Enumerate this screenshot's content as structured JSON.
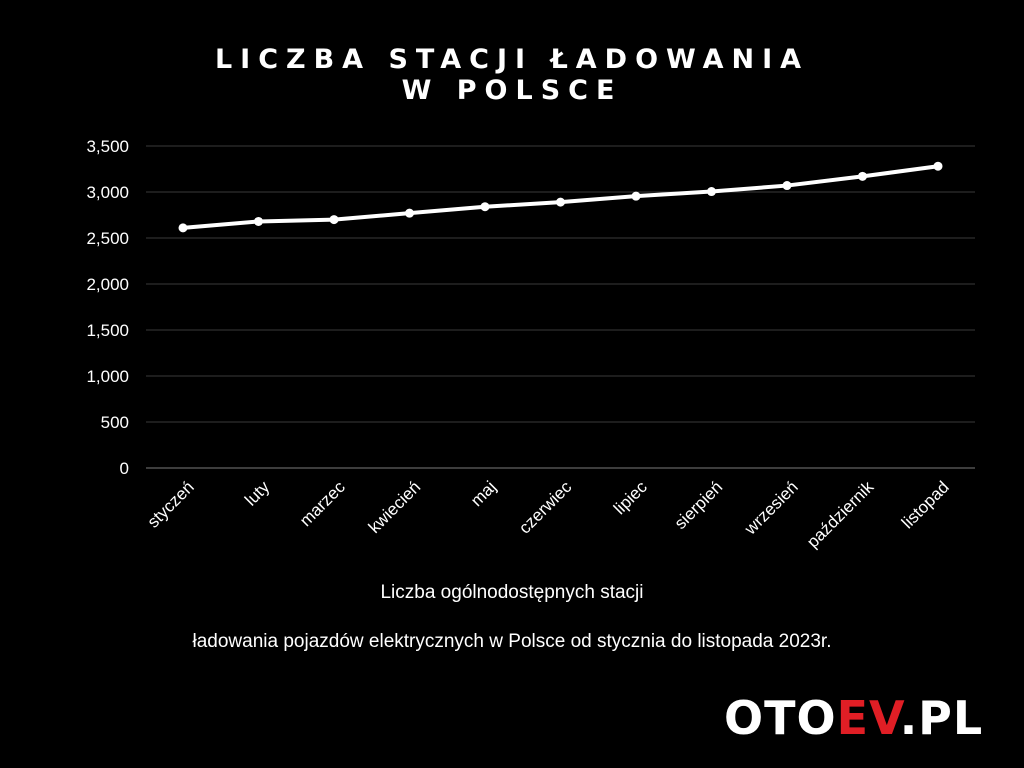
{
  "title": {
    "line1": "LICZBA STACJI ŁADOWANIA",
    "line2": "W POLSCE"
  },
  "caption": {
    "line1": "Liczba ogólnodostępnych stacji",
    "line2": "ładowania pojazdów elektrycznych w Polsce od stycznia do listopada 2023r."
  },
  "logo": {
    "part1": "OTO",
    "part2": "EV",
    "part3": ".PL"
  },
  "colors": {
    "background": "#000000",
    "line": "#ffffff",
    "grid": "#3a3a3a",
    "baseline": "#7a7a7a",
    "accent": "#e01e25"
  },
  "chart_data": {
    "type": "line",
    "title": "LICZBA STACJI ŁADOWANIA W POLSCE",
    "xlabel": "",
    "ylabel": "",
    "categories": [
      "styczeń",
      "luty",
      "marzec",
      "kwiecień",
      "maj",
      "czerwiec",
      "lipiec",
      "sierpień",
      "wrzesień",
      "październik",
      "listopad"
    ],
    "series": [
      {
        "values": [
          2610,
          2680,
          2700,
          2770,
          2840,
          2890,
          2955,
          3005,
          3070,
          3170,
          3280
        ]
      }
    ],
    "yticks": [
      "0",
      "500",
      "1,000",
      "1,500",
      "2,000",
      "2,500",
      "3,000",
      "3,500"
    ],
    "ylim": [
      0,
      3500
    ],
    "grid": true,
    "legend": "none"
  }
}
